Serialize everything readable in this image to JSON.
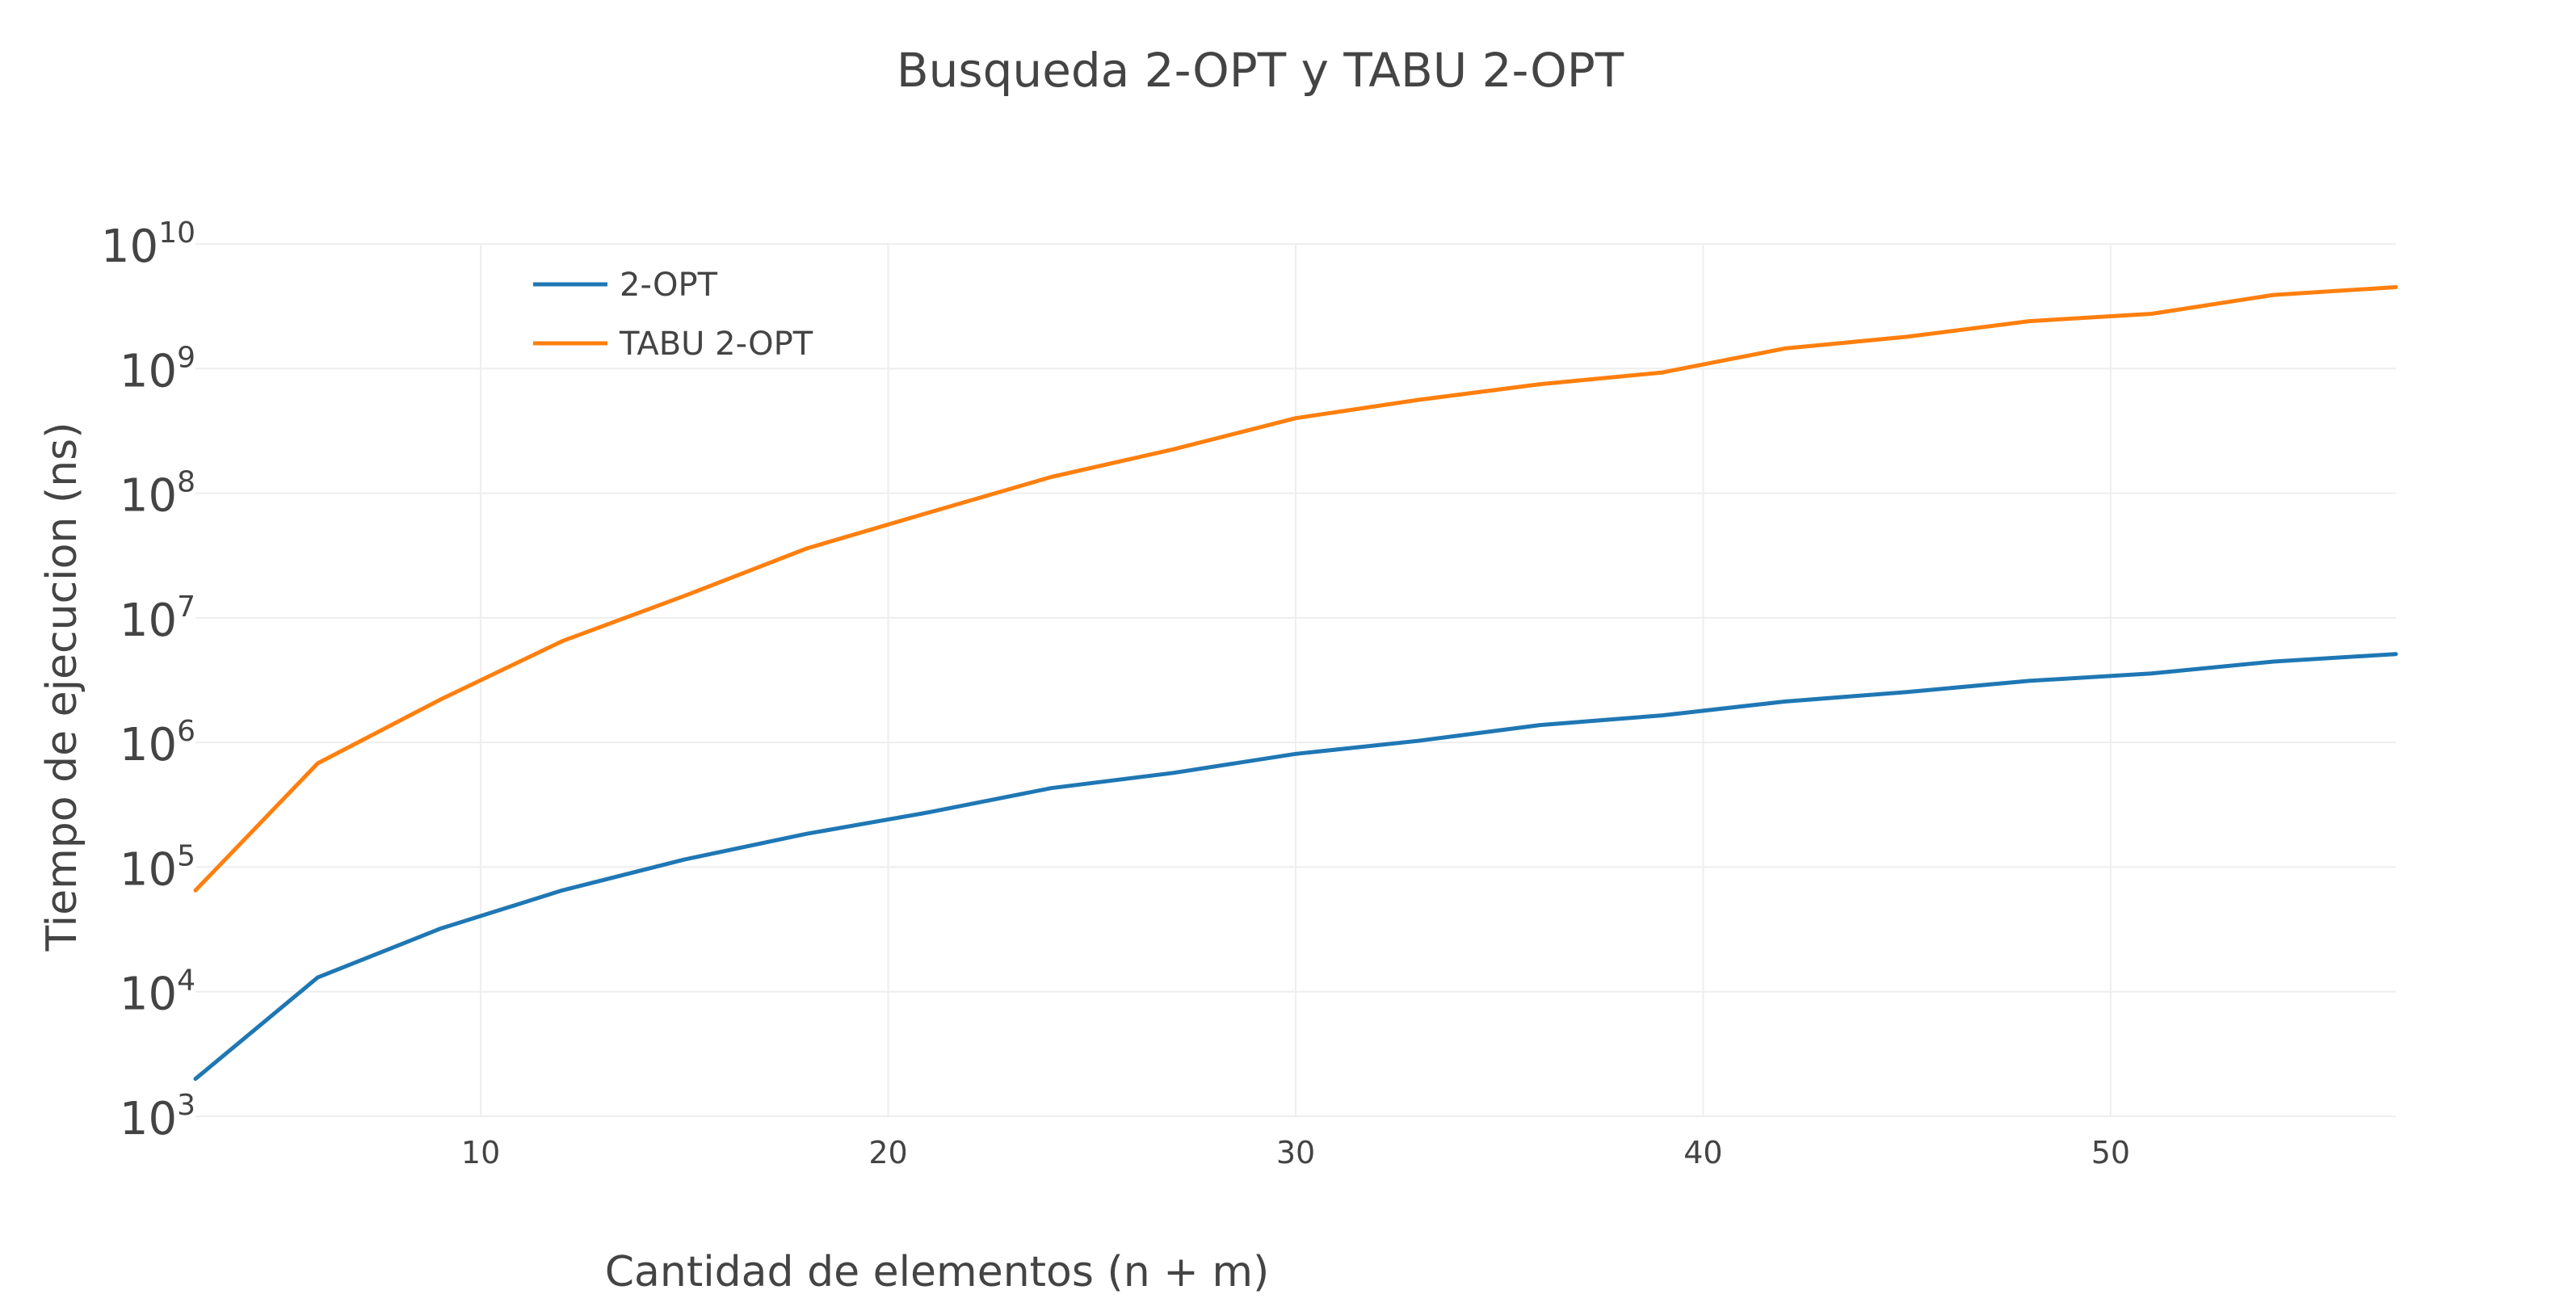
{
  "chart_data": {
    "type": "line",
    "title": "Busqueda 2-OPT y TABU 2-OPT",
    "xlabel": "Cantidad de elementos (n + m)",
    "ylabel": "Tiempo de ejecucion (ns)",
    "x_scale": "linear",
    "y_scale": "log",
    "xlim": [
      3,
      57
    ],
    "ylim": [
      1000,
      10000000000
    ],
    "x_ticks": [
      10,
      20,
      30,
      40,
      50
    ],
    "y_ticks": [
      {
        "value": 1000,
        "base": "10",
        "exp": "3"
      },
      {
        "value": 10000,
        "base": "10",
        "exp": "4"
      },
      {
        "value": 100000,
        "base": "10",
        "exp": "5"
      },
      {
        "value": 1000000,
        "base": "10",
        "exp": "6"
      },
      {
        "value": 10000000,
        "base": "10",
        "exp": "7"
      },
      {
        "value": 100000000,
        "base": "10",
        "exp": "8"
      },
      {
        "value": 1000000000,
        "base": "10",
        "exp": "9"
      },
      {
        "value": 10000000000,
        "base": "10",
        "exp": "10"
      }
    ],
    "grid": true,
    "legend_position": "top-left",
    "x": [
      3,
      6,
      9,
      12,
      15,
      18,
      21,
      24,
      27,
      30,
      33,
      36,
      39,
      42,
      45,
      48,
      51,
      54,
      57
    ],
    "series": [
      {
        "name": "2-OPT",
        "color": "#1f77b4",
        "values": [
          2000,
          13000,
          32000,
          65000,
          115000,
          185000,
          275000,
          430000,
          570000,
          810000,
          1030000,
          1380000,
          1650000,
          2130000,
          2540000,
          3120000,
          3580000,
          4460000,
          5120000
        ]
      },
      {
        "name": "TABU 2-OPT",
        "color": "#ff7f0e",
        "values": [
          65000,
          680000,
          2200000,
          6500000,
          15000000,
          36000000,
          70000000,
          135000000,
          225000000,
          400000000,
          560000000,
          750000000,
          930000000,
          1450000000,
          1800000000,
          2400000000,
          2750000000,
          3900000000,
          4500000000
        ]
      }
    ]
  }
}
